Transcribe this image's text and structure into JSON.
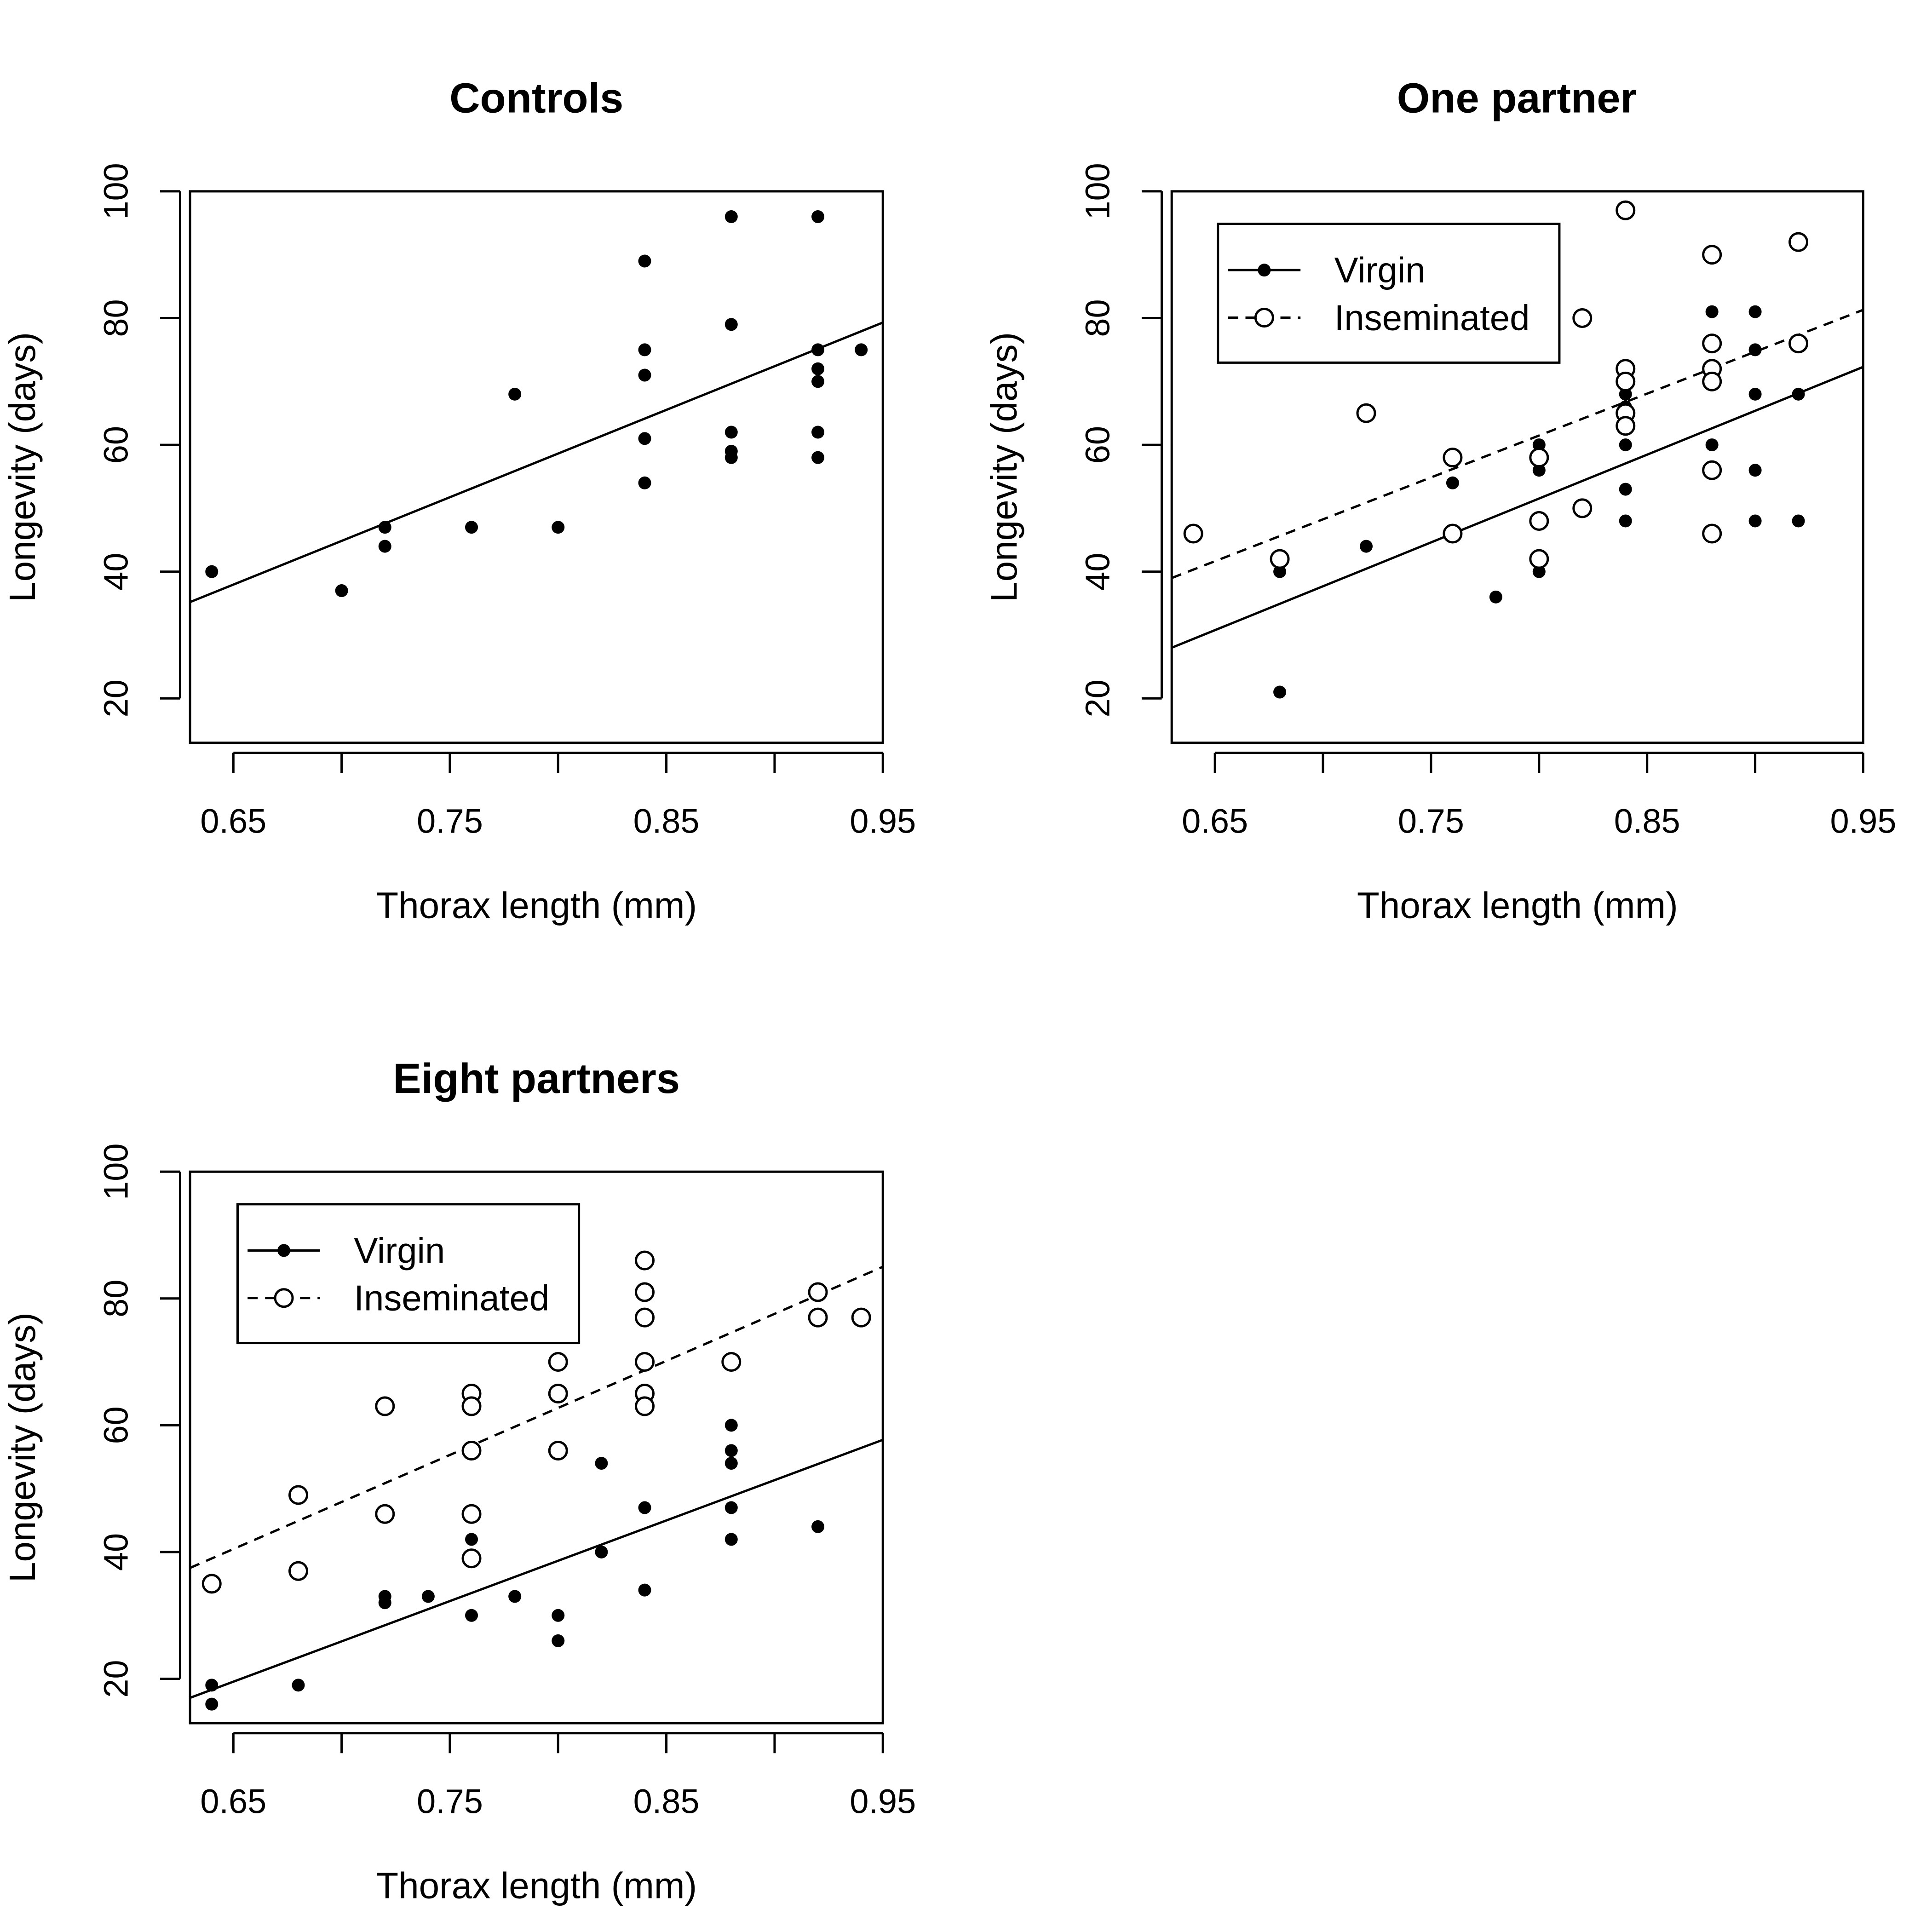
{
  "chart_data": [
    {
      "type": "scatter",
      "title": "Controls",
      "xlabel": "Thorax length (mm)",
      "ylabel": "Longevity (days)",
      "xlim": [
        0.63,
        0.95
      ],
      "ylim": [
        13,
        100
      ],
      "xticks": [
        0.65,
        0.7,
        0.75,
        0.8,
        0.85,
        0.9,
        0.95
      ],
      "xtick_labels": [
        "0.65",
        "",
        "0.75",
        "",
        "0.85",
        "",
        "0.95"
      ],
      "yticks": [
        20,
        40,
        60,
        80,
        100
      ],
      "ytick_labels": [
        "20",
        "40",
        "60",
        "80",
        "100"
      ],
      "legend": null,
      "series": [
        {
          "marker": "filled",
          "line": "solid",
          "fit": [
            0.63,
            35.2,
            0.95,
            79.3
          ],
          "points": [
            [
              0.64,
              40
            ],
            [
              0.7,
              37
            ],
            [
              0.72,
              47
            ],
            [
              0.72,
              44
            ],
            [
              0.76,
              47
            ],
            [
              0.78,
              68
            ],
            [
              0.8,
              47
            ],
            [
              0.84,
              89
            ],
            [
              0.84,
              75
            ],
            [
              0.84,
              71
            ],
            [
              0.84,
              61
            ],
            [
              0.84,
              54
            ],
            [
              0.88,
              96
            ],
            [
              0.88,
              79
            ],
            [
              0.88,
              62
            ],
            [
              0.88,
              59
            ],
            [
              0.88,
              58
            ],
            [
              0.92,
              96
            ],
            [
              0.92,
              75
            ],
            [
              0.92,
              72
            ],
            [
              0.92,
              70
            ],
            [
              0.92,
              62
            ],
            [
              0.92,
              58
            ],
            [
              0.94,
              75
            ]
          ]
        }
      ]
    },
    {
      "type": "scatter",
      "title": "One partner",
      "xlabel": "Thorax length (mm)",
      "ylabel": "Longevity (days)",
      "xlim": [
        0.63,
        0.95
      ],
      "ylim": [
        13,
        100
      ],
      "xticks": [
        0.65,
        0.7,
        0.75,
        0.8,
        0.85,
        0.9,
        0.95
      ],
      "xtick_labels": [
        "0.65",
        "",
        "0.75",
        "",
        "0.85",
        "",
        "0.95"
      ],
      "yticks": [
        20,
        40,
        60,
        80,
        100
      ],
      "ytick_labels": [
        "20",
        "40",
        "60",
        "80",
        "100"
      ],
      "legend": {
        "position": "top-left",
        "entries": [
          {
            "label": "Virgin",
            "marker": "filled",
            "line": "solid"
          },
          {
            "label": "Inseminated",
            "marker": "open",
            "line": "dashed"
          }
        ]
      },
      "series": [
        {
          "name": "Virgin",
          "marker": "filled",
          "line": "solid",
          "fit": [
            0.63,
            28.0,
            0.95,
            72.3
          ],
          "points": [
            [
              0.68,
              40
            ],
            [
              0.68,
              21
            ],
            [
              0.72,
              44
            ],
            [
              0.76,
              54
            ],
            [
              0.78,
              36
            ],
            [
              0.8,
              60
            ],
            [
              0.8,
              56
            ],
            [
              0.8,
              40
            ],
            [
              0.84,
              68
            ],
            [
              0.84,
              66
            ],
            [
              0.84,
              65
            ],
            [
              0.84,
              60
            ],
            [
              0.84,
              53
            ],
            [
              0.84,
              48
            ],
            [
              0.88,
              81
            ],
            [
              0.88,
              60
            ],
            [
              0.9,
              81
            ],
            [
              0.9,
              75
            ],
            [
              0.9,
              68
            ],
            [
              0.9,
              56
            ],
            [
              0.9,
              48
            ],
            [
              0.92,
              68
            ],
            [
              0.92,
              48
            ]
          ]
        },
        {
          "name": "Inseminated",
          "marker": "open",
          "line": "dashed",
          "fit": [
            0.63,
            39.0,
            0.95,
            81.3
          ],
          "points": [
            [
              0.64,
              46
            ],
            [
              0.68,
              42
            ],
            [
              0.72,
              65
            ],
            [
              0.76,
              58
            ],
            [
              0.76,
              46
            ],
            [
              0.8,
              58
            ],
            [
              0.8,
              48
            ],
            [
              0.8,
              42
            ],
            [
              0.82,
              80
            ],
            [
              0.82,
              50
            ],
            [
              0.84,
              97
            ],
            [
              0.84,
              72
            ],
            [
              0.84,
              70
            ],
            [
              0.84,
              65
            ],
            [
              0.84,
              63
            ],
            [
              0.88,
              90
            ],
            [
              0.88,
              76
            ],
            [
              0.88,
              72
            ],
            [
              0.88,
              70
            ],
            [
              0.88,
              56
            ],
            [
              0.88,
              46
            ],
            [
              0.92,
              92
            ],
            [
              0.92,
              76
            ]
          ]
        }
      ]
    },
    {
      "type": "scatter",
      "title": "Eight partners",
      "xlabel": "Thorax length (mm)",
      "ylabel": "Longevity (days)",
      "xlim": [
        0.63,
        0.95
      ],
      "ylim": [
        13,
        100
      ],
      "xticks": [
        0.65,
        0.7,
        0.75,
        0.8,
        0.85,
        0.9,
        0.95
      ],
      "xtick_labels": [
        "0.65",
        "",
        "0.75",
        "",
        "0.85",
        "",
        "0.95"
      ],
      "yticks": [
        20,
        40,
        60,
        80,
        100
      ],
      "ytick_labels": [
        "20",
        "40",
        "60",
        "80",
        "100"
      ],
      "legend": {
        "position": "top-left",
        "entries": [
          {
            "label": "Virgin",
            "marker": "filled",
            "line": "solid"
          },
          {
            "label": "Inseminated",
            "marker": "open",
            "line": "dashed"
          }
        ]
      },
      "series": [
        {
          "name": "Virgin",
          "marker": "filled",
          "line": "solid",
          "fit": [
            0.63,
            17.0,
            0.95,
            57.7
          ],
          "points": [
            [
              0.64,
              19
            ],
            [
              0.64,
              16
            ],
            [
              0.68,
              19
            ],
            [
              0.72,
              33
            ],
            [
              0.72,
              32
            ],
            [
              0.74,
              33
            ],
            [
              0.76,
              42
            ],
            [
              0.76,
              30
            ],
            [
              0.78,
              33
            ],
            [
              0.8,
              30
            ],
            [
              0.8,
              26
            ],
            [
              0.82,
              54
            ],
            [
              0.82,
              40
            ],
            [
              0.84,
              47
            ],
            [
              0.84,
              34
            ],
            [
              0.88,
              60
            ],
            [
              0.88,
              56
            ],
            [
              0.88,
              54
            ],
            [
              0.88,
              47
            ],
            [
              0.88,
              42
            ],
            [
              0.92,
              44
            ]
          ]
        },
        {
          "name": "Inseminated",
          "marker": "open",
          "line": "dashed",
          "fit": [
            0.63,
            37.5,
            0.95,
            85.0
          ],
          "points": [
            [
              0.64,
              35
            ],
            [
              0.68,
              49
            ],
            [
              0.68,
              37
            ],
            [
              0.72,
              63
            ],
            [
              0.72,
              46
            ],
            [
              0.76,
              65
            ],
            [
              0.76,
              63
            ],
            [
              0.76,
              56
            ],
            [
              0.76,
              46
            ],
            [
              0.76,
              39
            ],
            [
              0.8,
              70
            ],
            [
              0.8,
              65
            ],
            [
              0.8,
              56
            ],
            [
              0.84,
              86
            ],
            [
              0.84,
              81
            ],
            [
              0.84,
              77
            ],
            [
              0.84,
              70
            ],
            [
              0.84,
              65
            ],
            [
              0.84,
              63
            ],
            [
              0.88,
              70
            ],
            [
              0.92,
              81
            ],
            [
              0.92,
              77
            ],
            [
              0.94,
              77
            ]
          ]
        }
      ]
    }
  ]
}
